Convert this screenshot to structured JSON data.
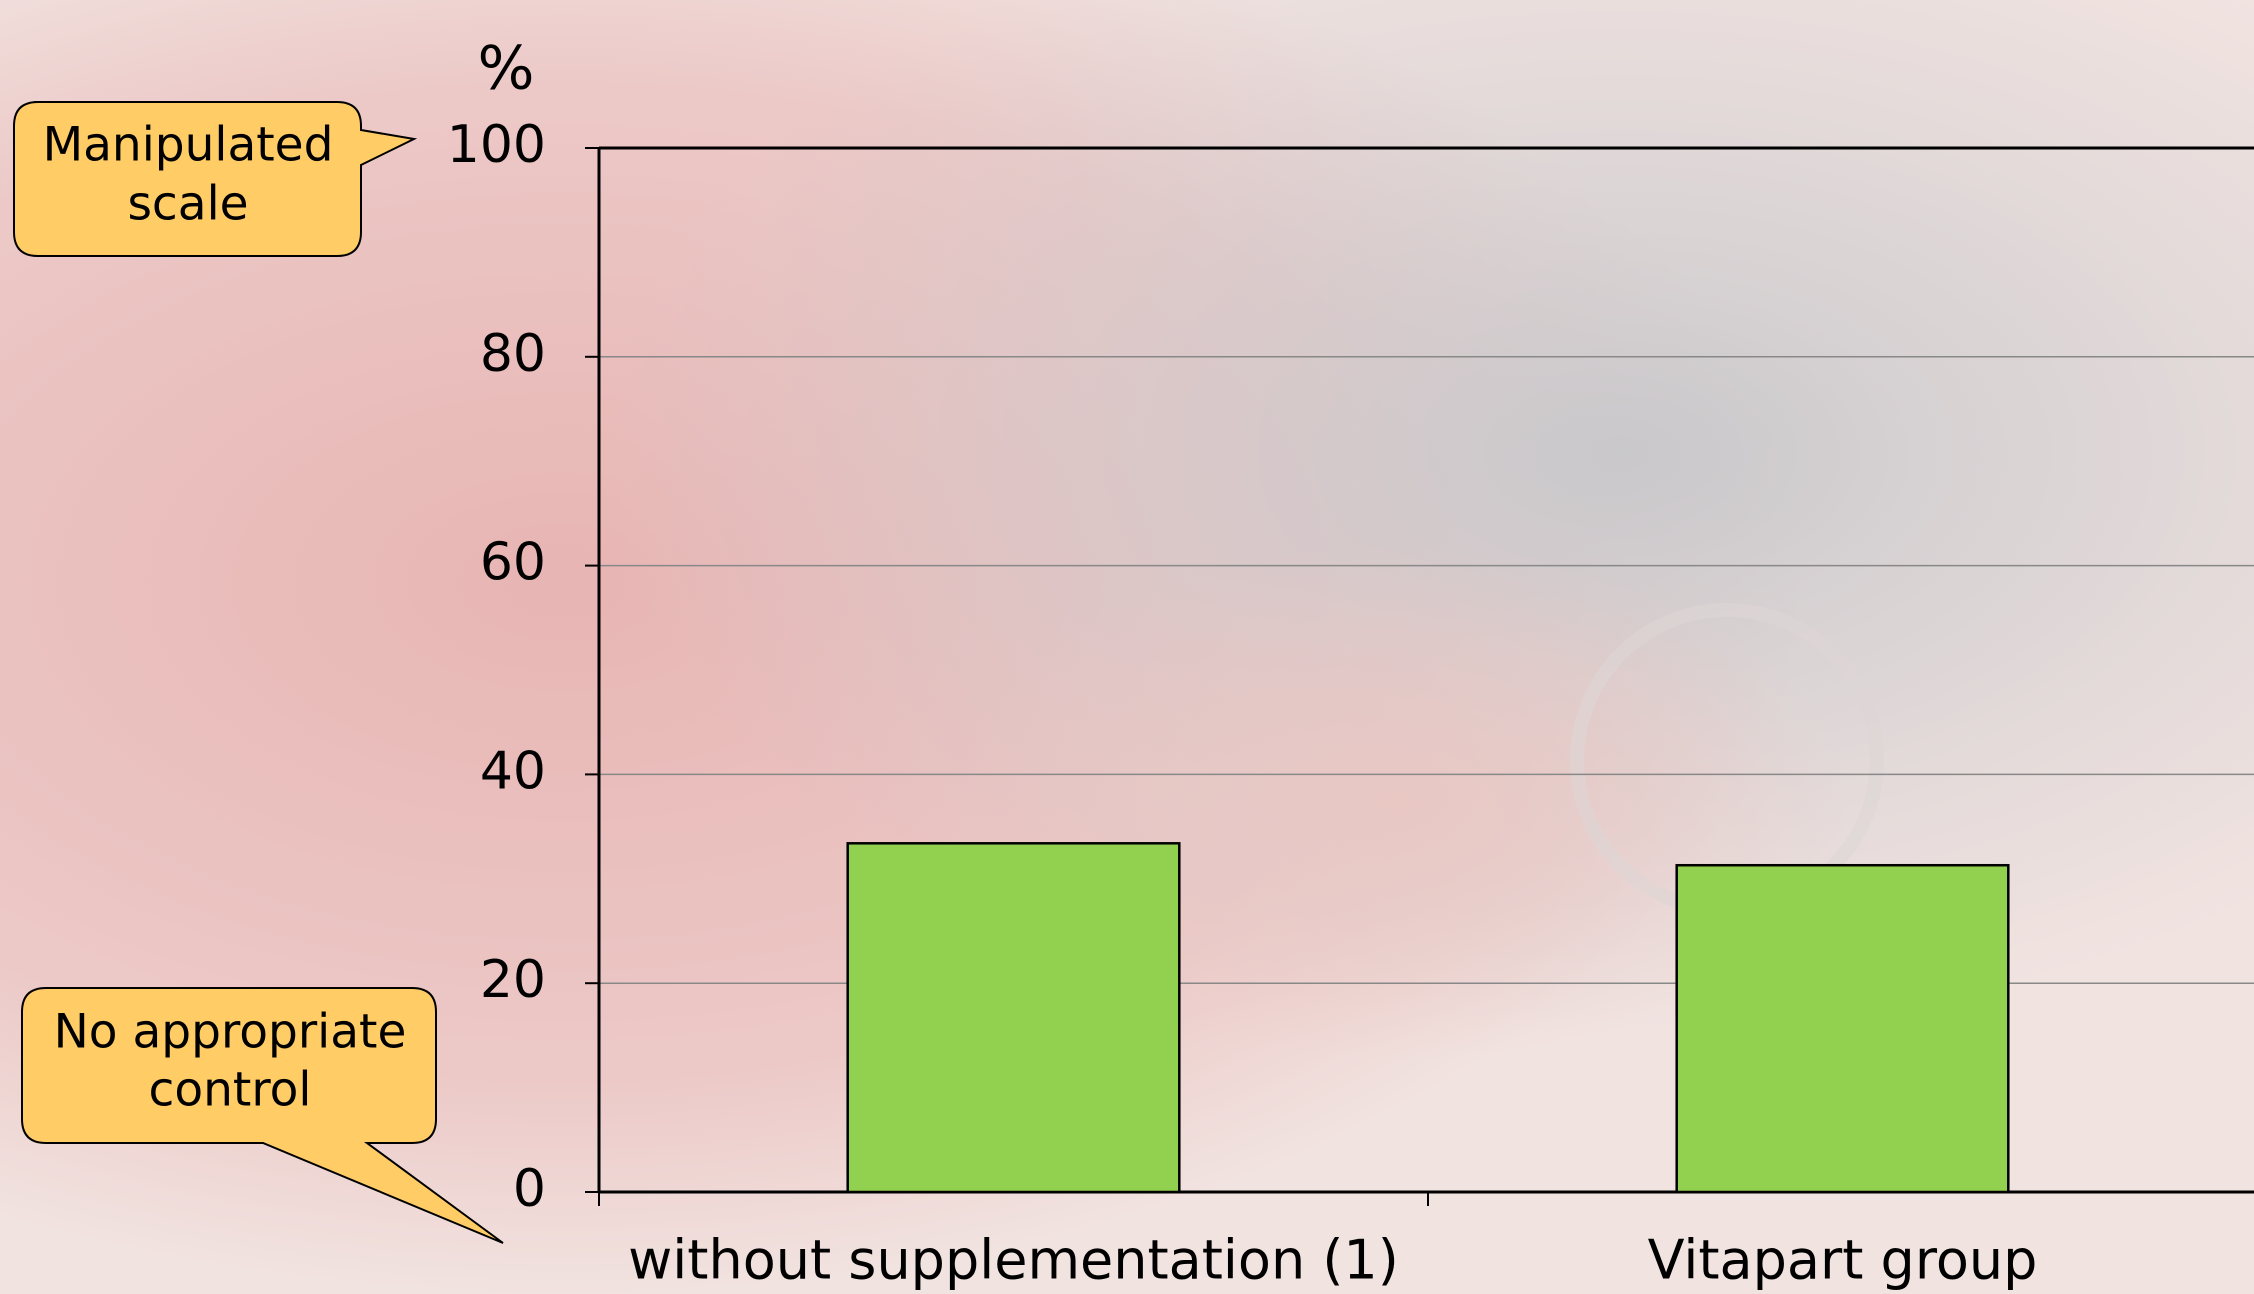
{
  "chart_data": {
    "type": "bar",
    "y_label": "%",
    "categories": [
      "without supplementation (1)",
      "Vitapart group"
    ],
    "values": [
      33.4,
      31.3
    ],
    "color": "#92d050",
    "ylim": [
      0,
      100
    ],
    "yticks": [
      0,
      20,
      40,
      60,
      80,
      100
    ],
    "grid": true,
    "annotations": [
      {
        "lines": [
          "Manipulated",
          "scale"
        ]
      },
      {
        "lines": [
          "No appropriate",
          "control"
        ]
      }
    ]
  }
}
